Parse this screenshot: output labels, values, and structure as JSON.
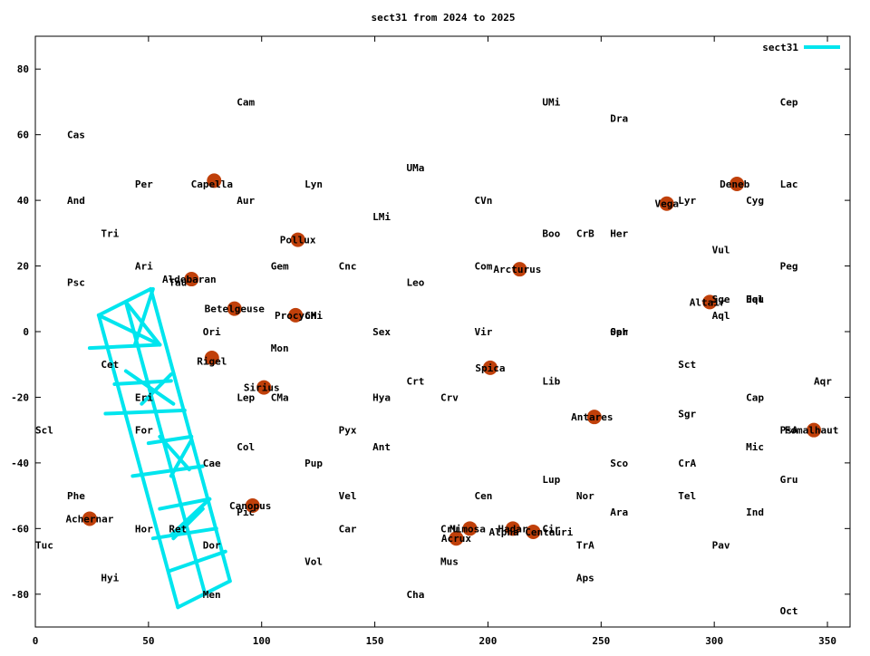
{
  "chart_data": {
    "type": "scatter",
    "title": "sect31 from 2024 to 2025",
    "xlabel": "",
    "ylabel": "",
    "xlim": [
      0,
      360
    ],
    "ylim": [
      -90,
      90
    ],
    "xticks": [
      0,
      50,
      100,
      150,
      200,
      250,
      300,
      350
    ],
    "yticks": [
      -80,
      -60,
      -40,
      -20,
      0,
      20,
      40,
      60,
      80
    ],
    "grid": false,
    "legend": "top-right",
    "colors": {
      "series": "#00e5ee",
      "stars": "#c0400a",
      "text": "#000000",
      "axes": "#000000"
    },
    "series": [
      {
        "name": "sect31",
        "segments": [
          [
            [
              28,
              5
            ],
            [
              51,
              13
            ]
          ],
          [
            [
              28,
              5
            ],
            [
              63,
              -84
            ]
          ],
          [
            [
              51,
              13
            ],
            [
              86,
              -76
            ]
          ],
          [
            [
              40,
              9
            ],
            [
              75,
              -80
            ]
          ],
          [
            [
              28,
              5
            ],
            [
              55,
              -4
            ]
          ],
          [
            [
              24,
              -5
            ],
            [
              55,
              -4
            ]
          ],
          [
            [
              35,
              -16
            ],
            [
              60,
              -15
            ]
          ],
          [
            [
              31,
              -25
            ],
            [
              66,
              -24
            ]
          ],
          [
            [
              50,
              -34
            ],
            [
              69,
              -32
            ]
          ],
          [
            [
              43,
              -44
            ],
            [
              74,
              -41
            ]
          ],
          [
            [
              55,
              -54
            ],
            [
              77,
              -51
            ]
          ],
          [
            [
              52,
              -63
            ],
            [
              80,
              -60
            ]
          ],
          [
            [
              59,
              -73
            ],
            [
              84,
              -67
            ]
          ],
          [
            [
              63,
              -84
            ],
            [
              86,
              -76
            ]
          ],
          [
            [
              40,
              9
            ],
            [
              55,
              -4
            ]
          ],
          [
            [
              52,
              13
            ],
            [
              44,
              -4
            ]
          ],
          [
            [
              40,
              -12
            ],
            [
              61,
              -22
            ]
          ],
          [
            [
              60,
              -13
            ],
            [
              47,
              -22
            ]
          ],
          [
            [
              55,
              -32
            ],
            [
              68,
              -42
            ]
          ],
          [
            [
              69,
              -33
            ],
            [
              60,
              -44
            ]
          ],
          [
            [
              60,
              -62
            ],
            [
              77,
              -51
            ]
          ],
          [
            [
              74,
              -54
            ],
            [
              61,
              -63
            ]
          ]
        ]
      }
    ],
    "stars": [
      {
        "name": "Capella",
        "x": 79,
        "y": 46
      },
      {
        "name": "Aldebaran",
        "x": 69,
        "y": 16
      },
      {
        "name": "Betelgeuse",
        "x": 88,
        "y": 7
      },
      {
        "name": "Rigel",
        "x": 78,
        "y": -8
      },
      {
        "name": "Sirius",
        "x": 101,
        "y": -17
      },
      {
        "name": "Canopus",
        "x": 96,
        "y": -53
      },
      {
        "name": "Achernar",
        "x": 24,
        "y": -57
      },
      {
        "name": "Pollux",
        "x": 116,
        "y": 28
      },
      {
        "name": "Procyon",
        "x": 115,
        "y": 5
      },
      {
        "name": "Arcturus",
        "x": 214,
        "y": 19
      },
      {
        "name": "Spica",
        "x": 201,
        "y": -11
      },
      {
        "name": "Antares",
        "x": 247,
        "y": -26
      },
      {
        "name": "Mimosa",
        "x": 192,
        "y": -60
      },
      {
        "name": "Acrux",
        "x": 186,
        "y": -63
      },
      {
        "name": "Hadar",
        "x": 211,
        "y": -60
      },
      {
        "name": "Alpha Centauri",
        "x": 220,
        "y": -61
      },
      {
        "name": "Vega",
        "x": 279,
        "y": 39
      },
      {
        "name": "Altair",
        "x": 298,
        "y": 9
      },
      {
        "name": "Deneb",
        "x": 310,
        "y": 45
      },
      {
        "name": "Fomalhaut",
        "x": 344,
        "y": -30
      }
    ],
    "star_labels": [
      {
        "text": "Capella",
        "x": 78,
        "y": 45
      },
      {
        "text": "Aldebaran",
        "x": 68,
        "y": 16
      },
      {
        "text": "Betelgeuse",
        "x": 88,
        "y": 7
      },
      {
        "text": "Rigel",
        "x": 78,
        "y": -9
      },
      {
        "text": "Sirius",
        "x": 100,
        "y": -17
      },
      {
        "text": "Canopus",
        "x": 95,
        "y": -53
      },
      {
        "text": "Achernar",
        "x": 24,
        "y": -57
      },
      {
        "text": "Pollux",
        "x": 116,
        "y": 28
      },
      {
        "text": "Procyon",
        "x": 115,
        "y": 5
      },
      {
        "text": "Arcturus",
        "x": 213,
        "y": 19
      },
      {
        "text": "Spica",
        "x": 201,
        "y": -11
      },
      {
        "text": "Antares",
        "x": 246,
        "y": -26
      },
      {
        "text": "Mimosa",
        "x": 191,
        "y": -60
      },
      {
        "text": "Acrux",
        "x": 186,
        "y": -63
      },
      {
        "text": "Hadar",
        "x": 211,
        "y": -60
      },
      {
        "text": "Alpha Centauri",
        "x": 219,
        "y": -61
      },
      {
        "text": "Vega",
        "x": 279,
        "y": 39
      },
      {
        "text": "Altair",
        "x": 297,
        "y": 9
      },
      {
        "text": "Deneb",
        "x": 309,
        "y": 45
      },
      {
        "text": "Fomalhaut",
        "x": 343,
        "y": -30
      }
    ],
    "constellations": [
      {
        "text": "Cam",
        "x": 89,
        "y": 70
      },
      {
        "text": "UMi",
        "x": 224,
        "y": 70
      },
      {
        "text": "Cep",
        "x": 329,
        "y": 70
      },
      {
        "text": "Dra",
        "x": 254,
        "y": 65
      },
      {
        "text": "Cas",
        "x": 14,
        "y": 60
      },
      {
        "text": "UMa",
        "x": 164,
        "y": 50
      },
      {
        "text": "Per",
        "x": 44,
        "y": 45
      },
      {
        "text": "Lyn",
        "x": 119,
        "y": 45
      },
      {
        "text": "Lac",
        "x": 329,
        "y": 45
      },
      {
        "text": "And",
        "x": 14,
        "y": 40
      },
      {
        "text": "Aur",
        "x": 89,
        "y": 40
      },
      {
        "text": "CVn",
        "x": 194,
        "y": 40
      },
      {
        "text": "Lyr",
        "x": 284,
        "y": 40
      },
      {
        "text": "Cyg",
        "x": 314,
        "y": 40
      },
      {
        "text": "LMi",
        "x": 149,
        "y": 35
      },
      {
        "text": "Tri",
        "x": 29,
        "y": 30
      },
      {
        "text": "Boo",
        "x": 224,
        "y": 30
      },
      {
        "text": "CrB",
        "x": 239,
        "y": 30
      },
      {
        "text": "Her",
        "x": 254,
        "y": 30
      },
      {
        "text": "Vul",
        "x": 299,
        "y": 25
      },
      {
        "text": "Ari",
        "x": 44,
        "y": 20
      },
      {
        "text": "Gem",
        "x": 104,
        "y": 20
      },
      {
        "text": "Cnc",
        "x": 134,
        "y": 20
      },
      {
        "text": "Com",
        "x": 194,
        "y": 20
      },
      {
        "text": "Peg",
        "x": 329,
        "y": 20
      },
      {
        "text": "Psc",
        "x": 14,
        "y": 15
      },
      {
        "text": "Tau",
        "x": 59,
        "y": 15
      },
      {
        "text": "Leo",
        "x": 164,
        "y": 15
      },
      {
        "text": "Sge",
        "x": 299,
        "y": 10
      },
      {
        "text": "Del",
        "x": 314,
        "y": 10
      },
      {
        "text": "Equ",
        "x": 314,
        "y": 10
      },
      {
        "text": "CMi",
        "x": 119,
        "y": 5
      },
      {
        "text": "Aql",
        "x": 299,
        "y": 5
      },
      {
        "text": "Ori",
        "x": 74,
        "y": 0
      },
      {
        "text": "Sex",
        "x": 149,
        "y": 0
      },
      {
        "text": "Vir",
        "x": 194,
        "y": 0
      },
      {
        "text": "Oph",
        "x": 254,
        "y": 0
      },
      {
        "text": "Ser",
        "x": 254,
        "y": 0
      },
      {
        "text": "Mon",
        "x": 104,
        "y": -5
      },
      {
        "text": "Cet",
        "x": 29,
        "y": -10
      },
      {
        "text": "Sct",
        "x": 284,
        "y": -10
      },
      {
        "text": "Crt",
        "x": 164,
        "y": -15
      },
      {
        "text": "Lib",
        "x": 224,
        "y": -15
      },
      {
        "text": "Aqr",
        "x": 344,
        "y": -15
      },
      {
        "text": "Eri",
        "x": 44,
        "y": -20
      },
      {
        "text": "Lep",
        "x": 89,
        "y": -20
      },
      {
        "text": "CMa",
        "x": 104,
        "y": -20
      },
      {
        "text": "Hya",
        "x": 149,
        "y": -20
      },
      {
        "text": "Crv",
        "x": 179,
        "y": -20
      },
      {
        "text": "Cap",
        "x": 314,
        "y": -20
      },
      {
        "text": "Sgr",
        "x": 284,
        "y": -25
      },
      {
        "text": "Scl",
        "x": 0,
        "y": -30
      },
      {
        "text": "For",
        "x": 44,
        "y": -30
      },
      {
        "text": "Pyx",
        "x": 134,
        "y": -30
      },
      {
        "text": "PsA",
        "x": 329,
        "y": -30
      },
      {
        "text": "Col",
        "x": 89,
        "y": -35
      },
      {
        "text": "Ant",
        "x": 149,
        "y": -35
      },
      {
        "text": "Mic",
        "x": 314,
        "y": -35
      },
      {
        "text": "Cae",
        "x": 74,
        "y": -40
      },
      {
        "text": "Pup",
        "x": 119,
        "y": -40
      },
      {
        "text": "Sco",
        "x": 254,
        "y": -40
      },
      {
        "text": "CrA",
        "x": 284,
        "y": -40
      },
      {
        "text": "Lup",
        "x": 224,
        "y": -45
      },
      {
        "text": "Gru",
        "x": 329,
        "y": -45
      },
      {
        "text": "Phe",
        "x": 14,
        "y": -50
      },
      {
        "text": "Vel",
        "x": 134,
        "y": -50
      },
      {
        "text": "Cen",
        "x": 194,
        "y": -50
      },
      {
        "text": "Nor",
        "x": 239,
        "y": -50
      },
      {
        "text": "Tel",
        "x": 284,
        "y": -50
      },
      {
        "text": "Pic",
        "x": 89,
        "y": -55
      },
      {
        "text": "Ara",
        "x": 254,
        "y": -55
      },
      {
        "text": "Ind",
        "x": 314,
        "y": -55
      },
      {
        "text": "Hor",
        "x": 44,
        "y": -60
      },
      {
        "text": "Ret",
        "x": 59,
        "y": -60
      },
      {
        "text": "Car",
        "x": 134,
        "y": -60
      },
      {
        "text": "Cru",
        "x": 179,
        "y": -60
      },
      {
        "text": "Cir",
        "x": 224,
        "y": -60
      },
      {
        "text": "Tuc",
        "x": 0,
        "y": -65
      },
      {
        "text": "Dor",
        "x": 74,
        "y": -65
      },
      {
        "text": "TrA",
        "x": 239,
        "y": -65
      },
      {
        "text": "Pav",
        "x": 299,
        "y": -65
      },
      {
        "text": "Vol",
        "x": 119,
        "y": -70
      },
      {
        "text": "Mus",
        "x": 179,
        "y": -70
      },
      {
        "text": "Hyi",
        "x": 29,
        "y": -75
      },
      {
        "text": "Aps",
        "x": 239,
        "y": -75
      },
      {
        "text": "Men",
        "x": 74,
        "y": -80
      },
      {
        "text": "Cha",
        "x": 164,
        "y": -80
      },
      {
        "text": "Oct",
        "x": 329,
        "y": -85
      }
    ]
  }
}
